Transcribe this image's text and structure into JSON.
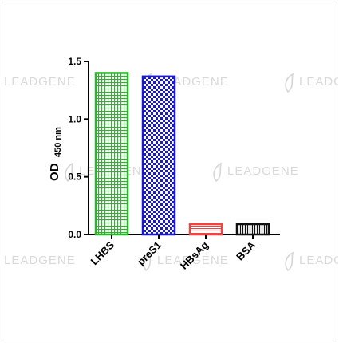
{
  "watermark": {
    "brand": "LEADGENE"
  },
  "chart_data": {
    "type": "bar",
    "categories": [
      "LHBS",
      "preS1",
      "HBsAg",
      "BSA"
    ],
    "values": [
      1.4,
      1.37,
      0.09,
      0.09
    ],
    "ylabel": "OD",
    "ylabel_sub": "450 nm",
    "ylim": [
      0,
      1.5
    ],
    "yticks": [
      0.0,
      0.5,
      1.0,
      1.5
    ],
    "ytick_labels": [
      "0.0",
      "0.5",
      "1.0",
      "1.5"
    ],
    "grid": false,
    "legend": "none",
    "colors": [
      "#22bb22",
      "#1a1acc",
      "#ee4444",
      "#111111"
    ],
    "patterns": [
      "grid",
      "checker",
      "horizontal",
      "vertical"
    ]
  }
}
